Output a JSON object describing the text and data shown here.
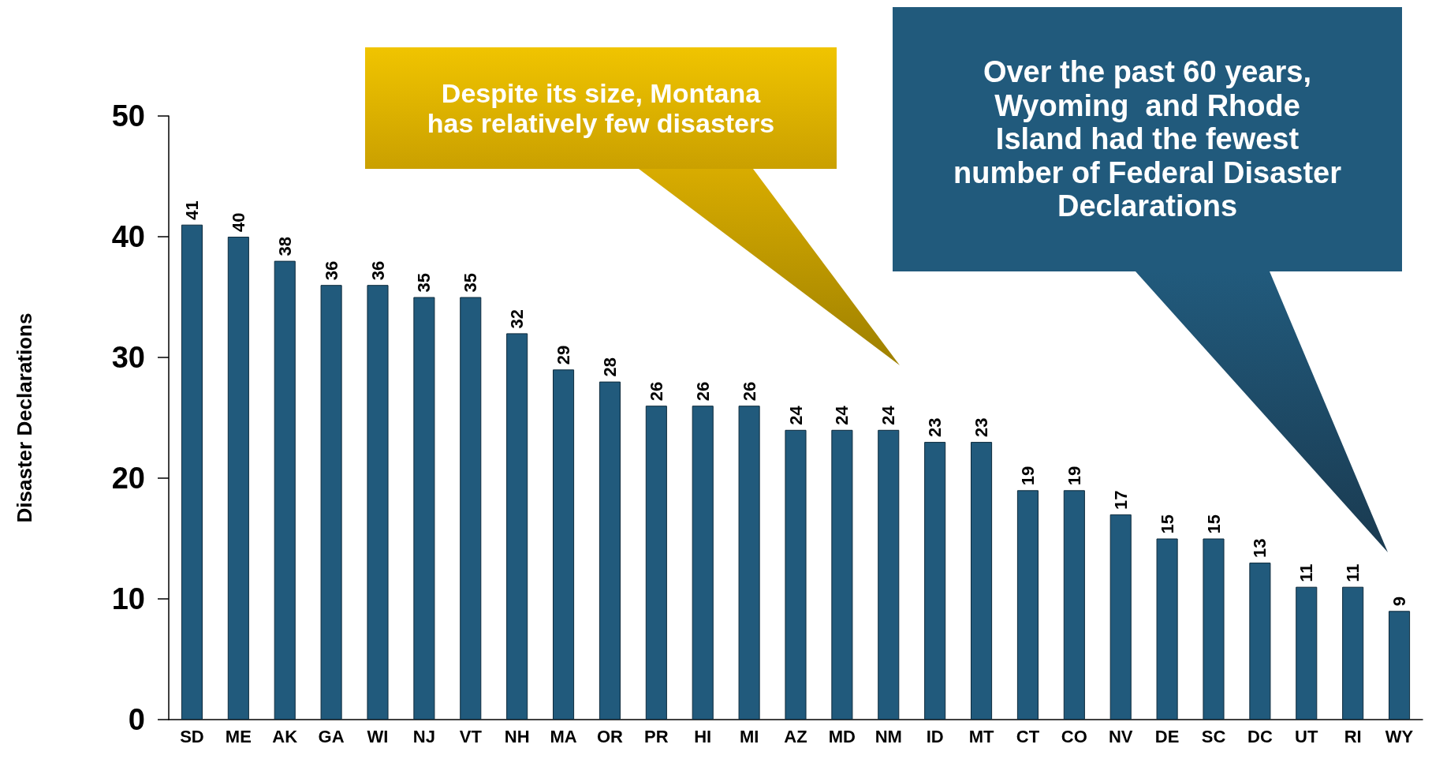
{
  "chart_data": {
    "type": "bar",
    "ylabel": "Disaster Declarations",
    "categories": [
      "SD",
      "ME",
      "AK",
      "GA",
      "WI",
      "NJ",
      "VT",
      "NH",
      "MA",
      "OR",
      "PR",
      "HI",
      "MI",
      "AZ",
      "MD",
      "NM",
      "ID",
      "MT",
      "CT",
      "CO",
      "NV",
      "DE",
      "SC",
      "DC",
      "UT",
      "RI",
      "WY"
    ],
    "values": [
      41,
      40,
      38,
      36,
      36,
      35,
      35,
      32,
      29,
      28,
      26,
      26,
      26,
      24,
      24,
      24,
      23,
      23,
      19,
      19,
      17,
      15,
      15,
      13,
      11,
      11,
      9
    ],
    "color": "#215a7c",
    "ylim": [
      0,
      50
    ],
    "yticks": [
      0,
      10,
      20,
      30,
      40,
      50
    ],
    "data_labels": true,
    "annotations": [
      "Despite its size, Montana has relatively few disasters",
      "Over the past 60 years, Wyoming  and Rhode Island had the fewest number of Federal Disaster Declarations"
    ]
  }
}
